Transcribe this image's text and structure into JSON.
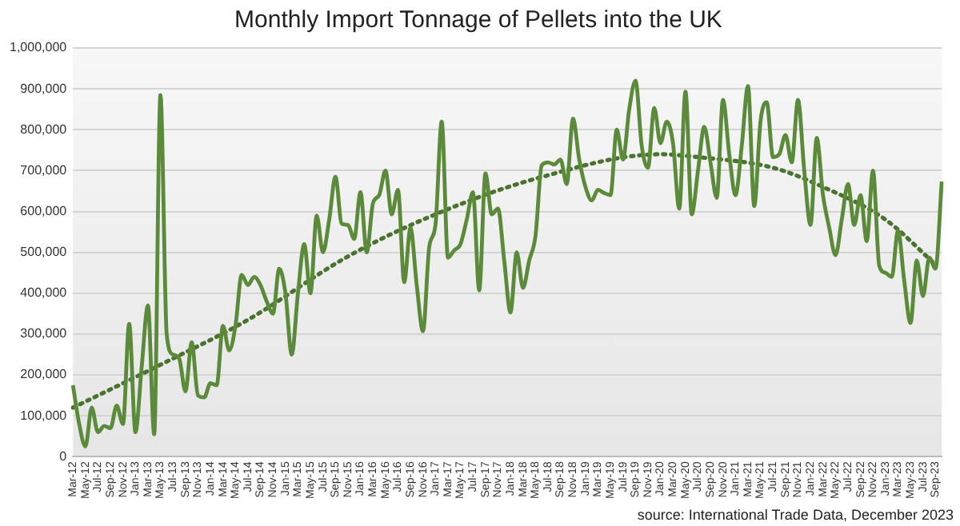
{
  "chart_data": {
    "type": "line",
    "title": "Monthly Import Tonnage of Pellets into the UK",
    "categories": [
      "Mar-12",
      null,
      "May-12",
      null,
      "Jul-12",
      null,
      "Sep-12",
      null,
      "Nov-12",
      null,
      "Jan-13",
      null,
      "Mar-13",
      null,
      "May-13",
      null,
      "Jul-13",
      null,
      "Sep-13",
      null,
      "Nov-13",
      null,
      "Jan-14",
      null,
      "Mar-14",
      null,
      "May-14",
      null,
      "Jul-14",
      null,
      "Sep-14",
      null,
      "Nov-14",
      null,
      "Jan-15",
      null,
      "Mar-15",
      null,
      "May-15",
      null,
      "Jul-15",
      null,
      "Sep-15",
      null,
      "Nov-15",
      null,
      "Jan-16",
      null,
      "Mar-16",
      null,
      "May-16",
      null,
      "Jul-16",
      null,
      "Sep-16",
      null,
      "Nov-16",
      null,
      "Jan-17",
      null,
      "Mar-17",
      null,
      "May-17",
      null,
      "Jul-17",
      null,
      "Sep-17",
      null,
      "Nov-17",
      null,
      "Jan-18",
      null,
      "Mar-18",
      null,
      "May-18",
      null,
      "Jul-18",
      null,
      "Sep-18",
      null,
      "Nov-18",
      null,
      "Jan-19",
      null,
      "Mar-19",
      null,
      "May-19",
      null,
      "Jul-19",
      null,
      "Sep-19",
      null,
      "Nov-19",
      null,
      "Jan-20",
      null,
      "Mar-20",
      null,
      "May-20",
      null,
      "Jul-20",
      null,
      "Sep-20",
      null,
      "Nov-20",
      null,
      "Jan-21",
      null,
      "Mar-21",
      null,
      "May-21",
      null,
      "Jul-21",
      null,
      "Sep-21",
      null,
      "Nov-21",
      null,
      "Jan-22",
      null,
      "Mar-22",
      null,
      "May-22",
      null,
      "Jul-22",
      null,
      "Sep-22",
      null,
      "Nov-22",
      null,
      "Jan-23",
      null,
      "Mar-23",
      null,
      "May-23",
      null,
      "Jul-23",
      null,
      "Sep-23",
      null
    ],
    "series": [
      {
        "color": "#5a8a3a",
        "line_style": "solid",
        "values": [
          175000,
          80000,
          25000,
          120000,
          60000,
          75000,
          70000,
          125000,
          80000,
          325000,
          60000,
          220000,
          370000,
          55000,
          885000,
          300000,
          250000,
          240000,
          160000,
          280000,
          150000,
          145000,
          180000,
          175000,
          320000,
          260000,
          320000,
          445000,
          420000,
          440000,
          420000,
          380000,
          350000,
          460000,
          400000,
          250000,
          400000,
          520000,
          400000,
          590000,
          500000,
          580000,
          685000,
          570000,
          567000,
          533000,
          647000,
          500000,
          620000,
          640000,
          700000,
          593000,
          653000,
          427000,
          560000,
          420000,
          307000,
          513000,
          567000,
          820000,
          487000,
          505000,
          520000,
          580000,
          647000,
          407000,
          693000,
          593000,
          607000,
          480000,
          353000,
          500000,
          413000,
          480000,
          540000,
          713000,
          720000,
          715000,
          727000,
          667000,
          827000,
          727000,
          660000,
          627000,
          653000,
          645000,
          640000,
          800000,
          727000,
          850000,
          920000,
          760000,
          707000,
          853000,
          767000,
          820000,
          767000,
          607000,
          893000,
          593000,
          700000,
          807000,
          720000,
          633000,
          873000,
          740000,
          640000,
          760000,
          907000,
          613000,
          820000,
          867000,
          733000,
          740000,
          787000,
          720000,
          873000,
          700000,
          567000,
          780000,
          640000,
          560000,
          493000,
          580000,
          667000,
          567000,
          640000,
          527000,
          700000,
          467000,
          450000,
          440000,
          553000,
          430000,
          327000,
          480000,
          393000,
          487000,
          460000,
          673000
        ]
      },
      {
        "type": "line",
        "color": "#4a7330",
        "line_style": "dotted",
        "x": [
          "Mar-12",
          "May-13",
          "Jul-14",
          "Nov-15",
          "Jan-17",
          "May-18",
          "Jan-20",
          "Jul-20",
          "Jul-21",
          "Mar-22",
          "Jan-23",
          "Sep-23"
        ],
        "values": [
          120000,
          225000,
          335000,
          490000,
          593000,
          680000,
          740000,
          733000,
          707000,
          660000,
          580000,
          470000
        ]
      }
    ],
    "ylim": [
      0,
      1000000
    ],
    "yticks": [
      {
        "value": 0,
        "label": "0"
      },
      {
        "value": 100000,
        "label": "100,000"
      },
      {
        "value": 200000,
        "label": "200,000"
      },
      {
        "value": 300000,
        "label": "300,000"
      },
      {
        "value": 400000,
        "label": "400,000"
      },
      {
        "value": 500000,
        "label": "500,000"
      },
      {
        "value": 600000,
        "label": "600,000"
      },
      {
        "value": 700000,
        "label": "700,000"
      },
      {
        "value": 800000,
        "label": "800,000"
      },
      {
        "value": 900000,
        "label": "900,000"
      },
      {
        "value": 1000000,
        "label": "1,000,000"
      }
    ],
    "grid": "y",
    "marker": "none",
    "annotations": [
      "source: International Trade Data, December 2023"
    ]
  }
}
